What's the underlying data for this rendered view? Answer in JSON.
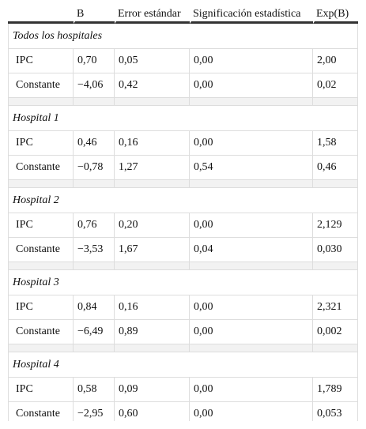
{
  "header": {
    "columns": [
      "B",
      "Error estándar",
      "Significación estadística",
      "Exp(B)"
    ]
  },
  "sections": [
    {
      "title": "Todos los hospitales",
      "rows": [
        [
          "IPC",
          "0,70",
          "0,05",
          "0,00",
          "2,00"
        ],
        [
          "Constante",
          "−4,06",
          "0,42",
          "0,00",
          "0,02"
        ]
      ]
    },
    {
      "title": "Hospital 1",
      "rows": [
        [
          "IPC",
          "0,46",
          "0,16",
          "0,00",
          "1,58"
        ],
        [
          "Constante",
          "−0,78",
          "1,27",
          "0,54",
          "0,46"
        ]
      ]
    },
    {
      "title": "Hospital 2",
      "rows": [
        [
          "IPC",
          "0,76",
          "0,20",
          "0,00",
          "2,129"
        ],
        [
          "Constante",
          "−3,53",
          "1,67",
          "0,04",
          "0,030"
        ]
      ]
    },
    {
      "title": "Hospital 3",
      "rows": [
        [
          "IPC",
          "0,84",
          "0,16",
          "0,00",
          "2,321"
        ],
        [
          "Constante",
          "−6,49",
          "0,89",
          "0,00",
          "0,002"
        ]
      ]
    },
    {
      "title": "Hospital 4",
      "rows": [
        [
          "IPC",
          "0,58",
          "0,09",
          "0,00",
          "1,789"
        ],
        [
          "Constante",
          "−2,95",
          "0,60",
          "0,00",
          "0,053"
        ]
      ]
    }
  ]
}
